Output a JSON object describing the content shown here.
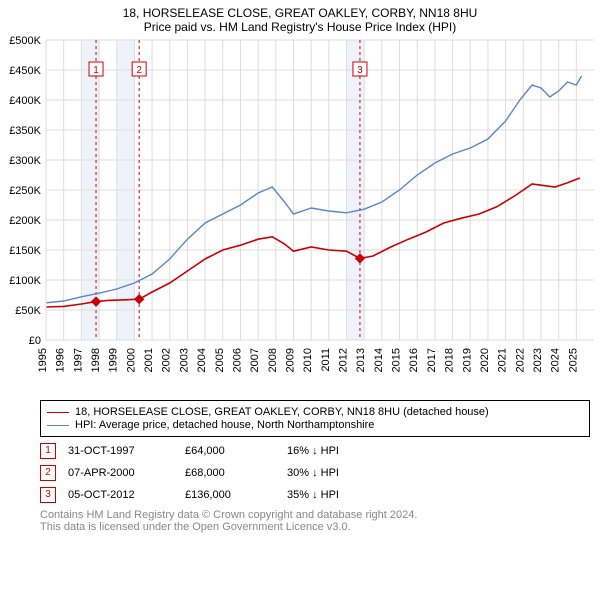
{
  "title_line1": "18, HORSELEASE CLOSE, GREAT OAKLEY, CORBY, NN18 8HU",
  "title_line2": "Price paid vs. HM Land Registry's House Price Index (HPI)",
  "chart": {
    "type": "line",
    "background_color": "#ffffff",
    "grid_color": "#dddddd",
    "axis_text_color": "#000000",
    "x": {
      "start_year": 1995,
      "end_year": 2026,
      "tick_years": [
        1995,
        1996,
        1997,
        1998,
        1999,
        2000,
        2001,
        2002,
        2003,
        2004,
        2005,
        2006,
        2007,
        2008,
        2009,
        2010,
        2011,
        2012,
        2013,
        2014,
        2015,
        2016,
        2017,
        2018,
        2019,
        2020,
        2021,
        2022,
        2023,
        2024,
        2025
      ],
      "label_fontsize": 11
    },
    "y": {
      "min": 0,
      "max": 500000,
      "tick_step": 50000,
      "tick_labels": [
        "£0",
        "£50K",
        "£100K",
        "£150K",
        "£200K",
        "£250K",
        "£300K",
        "£350K",
        "£400K",
        "£450K",
        "£500K"
      ],
      "label_fontsize": 11
    },
    "bands": [
      {
        "from_year": 1997.0,
        "to_year": 1998.0,
        "fill": "#eef3fb"
      },
      {
        "from_year": 1999.0,
        "to_year": 2000.0,
        "fill": "#eef3fb"
      },
      {
        "from_year": 2012.0,
        "to_year": 2013.0,
        "fill": "#eef3fb"
      }
    ],
    "event_lines": [
      {
        "year": 1997.83,
        "color": "#cc0000",
        "dash": "3,3"
      },
      {
        "year": 2000.27,
        "color": "#cc0000",
        "dash": "3,3"
      },
      {
        "year": 2012.76,
        "color": "#cc0000",
        "dash": "3,3"
      }
    ],
    "event_markers": [
      {
        "n": "1",
        "year": 1997.83,
        "y_value": 450000,
        "box_color": "#cc0000"
      },
      {
        "n": "2",
        "year": 2000.27,
        "y_value": 450000,
        "box_color": "#cc0000"
      },
      {
        "n": "3",
        "year": 2012.76,
        "y_value": 450000,
        "box_color": "#cc0000"
      }
    ],
    "point_markers": [
      {
        "year": 1997.83,
        "value": 64000,
        "color": "#cc0000"
      },
      {
        "year": 2000.27,
        "value": 68000,
        "color": "#cc0000"
      },
      {
        "year": 2012.76,
        "value": 136000,
        "color": "#cc0000"
      }
    ],
    "series": [
      {
        "name": "18, HORSELEASE CLOSE, GREAT OAKLEY, CORBY, NN18 8HU (detached house)",
        "color": "#cc0000",
        "width": 1.6,
        "points": [
          [
            1995.0,
            55000
          ],
          [
            1996.0,
            56000
          ],
          [
            1997.0,
            60000
          ],
          [
            1997.83,
            64000
          ],
          [
            1998.5,
            66000
          ],
          [
            1999.5,
            67000
          ],
          [
            2000.27,
            68000
          ],
          [
            2001.0,
            80000
          ],
          [
            2002.0,
            95000
          ],
          [
            2003.0,
            115000
          ],
          [
            2004.0,
            135000
          ],
          [
            2005.0,
            150000
          ],
          [
            2006.0,
            158000
          ],
          [
            2007.0,
            168000
          ],
          [
            2007.8,
            172000
          ],
          [
            2008.5,
            160000
          ],
          [
            2009.0,
            148000
          ],
          [
            2010.0,
            155000
          ],
          [
            2011.0,
            150000
          ],
          [
            2012.0,
            148000
          ],
          [
            2012.76,
            136000
          ],
          [
            2013.5,
            140000
          ],
          [
            2014.5,
            155000
          ],
          [
            2015.5,
            168000
          ],
          [
            2016.5,
            180000
          ],
          [
            2017.5,
            195000
          ],
          [
            2018.5,
            203000
          ],
          [
            2019.5,
            210000
          ],
          [
            2020.5,
            222000
          ],
          [
            2021.5,
            240000
          ],
          [
            2022.5,
            260000
          ],
          [
            2023.0,
            258000
          ],
          [
            2023.8,
            255000
          ],
          [
            2024.5,
            262000
          ],
          [
            2025.2,
            270000
          ]
        ]
      },
      {
        "name": "HPI: Average price, detached house, North Northamptonshire",
        "color": "#5b86c4",
        "width": 1.4,
        "points": [
          [
            1995.0,
            62000
          ],
          [
            1996.0,
            65000
          ],
          [
            1997.0,
            72000
          ],
          [
            1998.0,
            78000
          ],
          [
            1999.0,
            85000
          ],
          [
            2000.0,
            95000
          ],
          [
            2001.0,
            110000
          ],
          [
            2002.0,
            135000
          ],
          [
            2003.0,
            168000
          ],
          [
            2004.0,
            195000
          ],
          [
            2005.0,
            210000
          ],
          [
            2006.0,
            225000
          ],
          [
            2007.0,
            245000
          ],
          [
            2007.8,
            255000
          ],
          [
            2008.5,
            230000
          ],
          [
            2009.0,
            210000
          ],
          [
            2010.0,
            220000
          ],
          [
            2011.0,
            215000
          ],
          [
            2012.0,
            212000
          ],
          [
            2013.0,
            218000
          ],
          [
            2014.0,
            230000
          ],
          [
            2015.0,
            250000
          ],
          [
            2016.0,
            275000
          ],
          [
            2017.0,
            295000
          ],
          [
            2018.0,
            310000
          ],
          [
            2019.0,
            320000
          ],
          [
            2020.0,
            335000
          ],
          [
            2021.0,
            365000
          ],
          [
            2021.8,
            400000
          ],
          [
            2022.5,
            425000
          ],
          [
            2023.0,
            420000
          ],
          [
            2023.5,
            405000
          ],
          [
            2024.0,
            415000
          ],
          [
            2024.5,
            430000
          ],
          [
            2025.0,
            425000
          ],
          [
            2025.3,
            440000
          ]
        ]
      }
    ]
  },
  "legend": {
    "rows": [
      {
        "color": "#cc0000",
        "label": "18, HORSELEASE CLOSE, GREAT OAKLEY, CORBY, NN18 8HU (detached house)"
      },
      {
        "color": "#5b86c4",
        "label": "HPI: Average price, detached house, North Northamptonshire"
      }
    ]
  },
  "events": [
    {
      "n": "1",
      "box_color": "#cc0000",
      "date": "31-OCT-1997",
      "price": "£64,000",
      "diff": "16% ↓ HPI"
    },
    {
      "n": "2",
      "box_color": "#cc0000",
      "date": "07-APR-2000",
      "price": "£68,000",
      "diff": "30% ↓ HPI"
    },
    {
      "n": "3",
      "box_color": "#cc0000",
      "date": "05-OCT-2012",
      "price": "£136,000",
      "diff": "35% ↓ HPI"
    }
  ],
  "footer_line1": "Contains HM Land Registry data © Crown copyright and database right 2024.",
  "footer_line2": "This data is licensed under the Open Government Licence v3.0.",
  "footer_color": "#888888"
}
